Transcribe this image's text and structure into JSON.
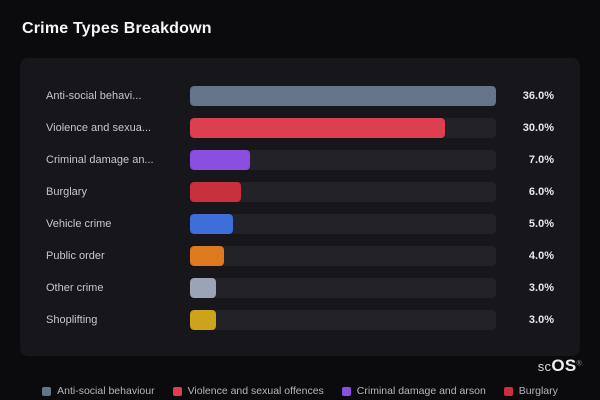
{
  "title": "Crime Types Breakdown",
  "chart_data": {
    "type": "bar",
    "orientation": "horizontal",
    "title": "Crime Types Breakdown",
    "categories": [
      "Anti-social behaviour",
      "Violence and sexual offences",
      "Criminal damage and arson",
      "Burglary",
      "Vehicle crime",
      "Public order",
      "Other crime",
      "Shoplifting"
    ],
    "display_labels": [
      "Anti-social behavi...",
      "Violence and sexua...",
      "Criminal damage an...",
      "Burglary",
      "Vehicle crime",
      "Public order",
      "Other crime",
      "Shoplifting"
    ],
    "values": [
      36.0,
      30.0,
      7.0,
      6.0,
      5.0,
      4.0,
      3.0,
      3.0
    ],
    "value_labels": [
      "36.0%",
      "30.0%",
      "7.0%",
      "6.0%",
      "5.0%",
      "4.0%",
      "3.0%",
      "3.0%"
    ],
    "colors": [
      "#64748b",
      "#dc4050",
      "#8b4fe0",
      "#c8303e",
      "#3e6fd8",
      "#dd7a1f",
      "#9ba3b4",
      "#cda21c"
    ],
    "xlim": [
      0,
      36
    ],
    "grid": false,
    "legend_position": "bottom"
  },
  "legend": {
    "items": [
      {
        "label": "Anti-social behaviour",
        "color": "#64748b"
      },
      {
        "label": "Violence and sexual offences",
        "color": "#dc4050"
      },
      {
        "label": "Criminal damage and arson",
        "color": "#8b4fe0"
      },
      {
        "label": "Burglary",
        "color": "#c8303e"
      }
    ]
  },
  "branding": {
    "logo_prefix": "sc",
    "logo_suffix": "OS",
    "registered": "®"
  }
}
